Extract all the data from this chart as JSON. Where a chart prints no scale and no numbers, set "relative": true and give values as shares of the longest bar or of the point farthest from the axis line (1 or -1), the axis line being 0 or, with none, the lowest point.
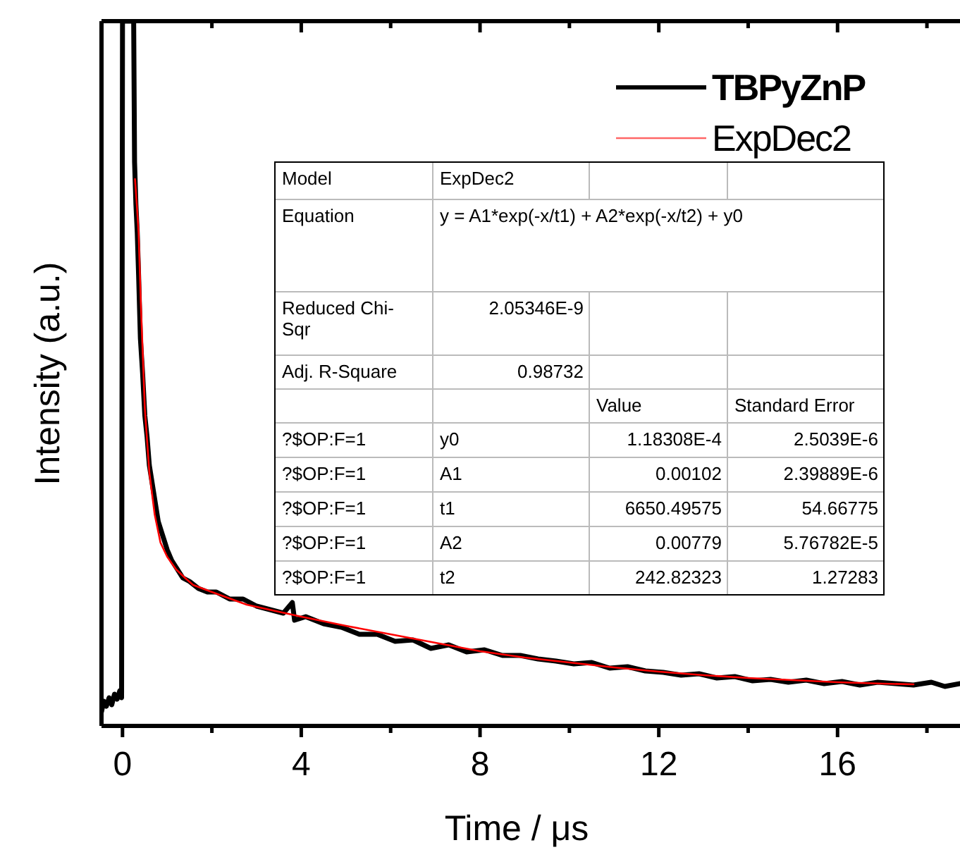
{
  "chart_data": {
    "type": "line",
    "relative": true,
    "xlabel": "Time / μs",
    "ylabel": "Intensity (a.u.)",
    "xlim": [
      -0.47,
      18.74
    ],
    "xticks": [
      0,
      {
        "value": 2,
        "label": null
      },
      4,
      {
        "value": 6,
        "label": null
      },
      8,
      {
        "value": 10,
        "label": null
      },
      12,
      {
        "value": 14,
        "label": null
      },
      16,
      {
        "value": 18,
        "label": null
      }
    ],
    "tick_labels": "x",
    "legend": "top right",
    "line_style": "solid",
    "marker": "none",
    "series": [
      {
        "name": "TBPyZnP",
        "color": "#000000",
        "x": [
          -0.47,
          -0.42,
          -0.36,
          -0.3,
          -0.24,
          -0.18,
          -0.12,
          -0.06,
          -0.02,
          0,
          0.25,
          0.27,
          0.3,
          0.33,
          0.36,
          0.4,
          0.45,
          0.5,
          0.55,
          0.6,
          0.7,
          0.8,
          0.9,
          1.0,
          1.1,
          1.2,
          1.35,
          1.5,
          1.7,
          1.9,
          2.1,
          2.4,
          2.7,
          3.0,
          3.3,
          3.6,
          3.8,
          3.85,
          4.1,
          4.5,
          4.9,
          5.3,
          5.7,
          6.1,
          6.5,
          6.9,
          7.3,
          7.7,
          8.1,
          8.5,
          8.9,
          9.3,
          9.7,
          10.1,
          10.5,
          10.9,
          11.3,
          11.7,
          12.1,
          12.5,
          12.9,
          13.3,
          13.7,
          14.1,
          14.5,
          14.9,
          15.3,
          15.7,
          16.1,
          16.5,
          16.9,
          17.3,
          17.7,
          18.1,
          18.4,
          18.74
        ],
        "values": [
          0.02,
          0.035,
          0.028,
          0.04,
          0.03,
          0.045,
          0.038,
          0.05,
          0.04,
          1,
          1,
          0.8,
          0.74,
          0.7,
          0.64,
          0.55,
          0.5,
          0.44,
          0.41,
          0.37,
          0.33,
          0.29,
          0.27,
          0.25,
          0.235,
          0.225,
          0.21,
          0.205,
          0.195,
          0.19,
          0.19,
          0.18,
          0.18,
          0.17,
          0.165,
          0.16,
          0.175,
          0.15,
          0.155,
          0.145,
          0.14,
          0.13,
          0.13,
          0.12,
          0.122,
          0.11,
          0.115,
          0.105,
          0.108,
          0.1,
          0.1,
          0.095,
          0.092,
          0.088,
          0.09,
          0.082,
          0.084,
          0.078,
          0.076,
          0.072,
          0.074,
          0.068,
          0.07,
          0.064,
          0.066,
          0.062,
          0.065,
          0.06,
          0.063,
          0.058,
          0.062,
          0.06,
          0.058,
          0.062,
          0.056,
          0.06
        ]
      },
      {
        "name": "ExpDec2",
        "color": "#ff0000",
        "type": "line",
        "x": [
          0.28,
          0.32,
          0.36,
          0.41,
          0.5,
          0.6,
          0.72,
          0.85,
          1.0,
          1.2,
          1.4,
          1.58,
          2.0,
          2.78,
          4.0,
          5.0,
          6.0,
          7.0,
          8.0,
          9.0,
          10.0,
          11.0,
          12.0,
          13.0,
          14.0,
          15.0,
          16.0,
          17.0,
          17.7
        ],
        "values": [
          0.776,
          0.74,
          0.7,
          0.6,
          0.45,
          0.36,
          0.3,
          0.26,
          0.24,
          0.222,
          0.21,
          0.2,
          0.19,
          0.172,
          0.155,
          0.142,
          0.13,
          0.118,
          0.106,
          0.097,
          0.09,
          0.083,
          0.077,
          0.072,
          0.068,
          0.065,
          0.062,
          0.06,
          0.059
        ]
      }
    ],
    "annotations": [
      "Model",
      "ExpDec2",
      "Equation",
      "y = A1*exp(-x/t1) + A2*exp(-x/t2) + y0",
      "Reduced Chi-Sqr",
      "2.05346E-9",
      "Adj. R-Square",
      "0.98732",
      "Value",
      "Standard Error",
      "?$OP:F=1",
      "y0",
      "1.18308E-4",
      "2.5039E-6",
      "?$OP:F=1",
      "A1",
      "0.00102",
      "2.39889E-6",
      "?$OP:F=1",
      "t1",
      "6650.49575",
      "54.66775",
      "?$OP:F=1",
      "A2",
      "0.00779",
      "5.76782E-5",
      "?$OP:F=1",
      "t2",
      "242.82323",
      "1.27283"
    ]
  }
}
